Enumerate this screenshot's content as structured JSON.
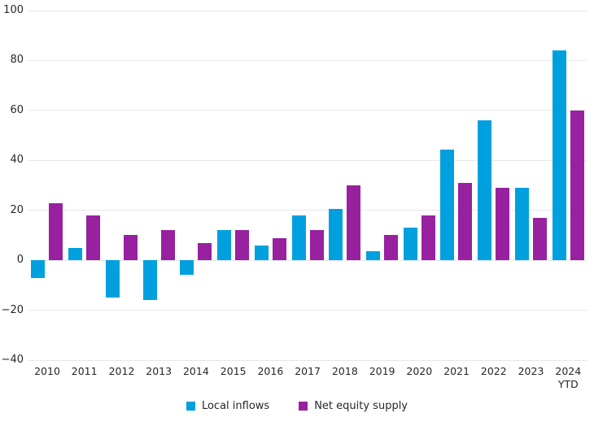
{
  "chart_data": {
    "type": "bar",
    "title": "",
    "xlabel": "",
    "ylabel": "",
    "categories": [
      "2010",
      "2011",
      "2012",
      "2013",
      "2014",
      "2015",
      "2016",
      "2017",
      "2018",
      "2019",
      "2020",
      "2021",
      "2022",
      "2023",
      "2024\nYTD"
    ],
    "series": [
      {
        "name": "Local inflows",
        "color": "#00A0DF",
        "values": [
          -7,
          5,
          -15,
          -16,
          -6,
          12,
          6,
          18,
          20.5,
          3.5,
          13,
          44.5,
          56,
          29,
          84
        ]
      },
      {
        "name": "Net equity supply",
        "color": "#97219F",
        "values": [
          23,
          18,
          10,
          12,
          7,
          12,
          9,
          12,
          30,
          10,
          18,
          31,
          29,
          17,
          60
        ]
      }
    ],
    "ylim": [
      -40,
      100
    ],
    "yticks": [
      100,
      80,
      60,
      40,
      20,
      0,
      -20,
      -40
    ],
    "grid": true,
    "legend_position": "bottom",
    "colors": {
      "gridline": "#e7e7ea",
      "text": "#26262e",
      "background": "#ffffff"
    }
  }
}
